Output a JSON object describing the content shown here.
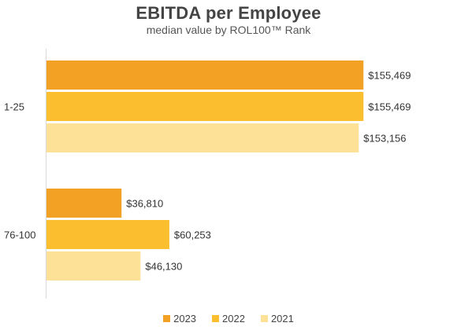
{
  "chart_data": {
    "type": "bar",
    "orientation": "horizontal",
    "title": "EBITDA per Employee",
    "subtitle": "median value by ROL100™ Rank",
    "categories": [
      "1-25",
      "76-100"
    ],
    "series": [
      {
        "name": "2023",
        "color": "#F2A124",
        "values": [
          155469,
          36810
        ],
        "labels": [
          "$155,469",
          "$36,810"
        ]
      },
      {
        "name": "2022",
        "color": "#FBBE2E",
        "values": [
          155469,
          60253
        ],
        "labels": [
          "$155,469",
          "$60,253"
        ]
      },
      {
        "name": "2021",
        "color": "#FDE197",
        "values": [
          153156,
          46130
        ],
        "labels": [
          "$153,156",
          "$46,130"
        ]
      }
    ],
    "xlim": [
      0,
      160000
    ],
    "grid": false,
    "legend_position": "bottom"
  }
}
